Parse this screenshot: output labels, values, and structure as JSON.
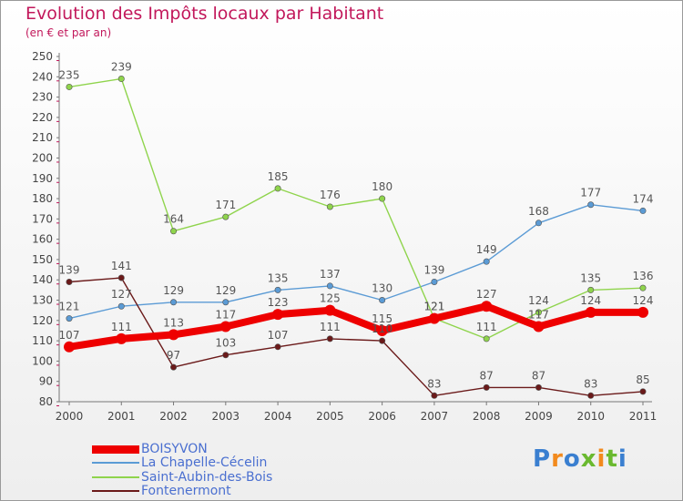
{
  "header": {
    "title": "Evolution des Impôts locaux par Habitant",
    "subtitle": "(en € et par an)"
  },
  "logo": {
    "text": "Proxiti",
    "colors": [
      "#3a7fd0",
      "#f28a1d",
      "#3a7fd0",
      "#6ab92f",
      "#f28a1d",
      "#6ab92f",
      "#3a7fd0"
    ]
  },
  "chart_data": {
    "type": "line",
    "title": "Evolution des Impôts locaux par Habitant",
    "subtitle": "(en € et par an)",
    "x": [
      "2000",
      "2001",
      "2002",
      "2003",
      "2004",
      "2005",
      "2006",
      "2007",
      "2008",
      "2009",
      "2010",
      "2011"
    ],
    "ylim": [
      80,
      250
    ],
    "yticks": [
      80,
      90,
      100,
      110,
      120,
      130,
      140,
      150,
      160,
      170,
      180,
      190,
      200,
      210,
      220,
      230,
      240,
      250
    ],
    "grid": false,
    "legend_position": "bottom-left",
    "series": [
      {
        "name": "BOISYVON",
        "color": "#ee0000",
        "values": [
          107,
          111,
          113,
          117,
          123,
          125,
          115,
          121,
          127,
          117,
          124,
          124
        ]
      },
      {
        "name": "La Chapelle-Cécelin",
        "color": "#5b9bd5",
        "values": [
          121,
          127,
          129,
          129,
          135,
          137,
          130,
          139,
          149,
          168,
          177,
          174
        ]
      },
      {
        "name": "Saint-Aubin-des-Bois",
        "color": "#8fd44c",
        "values": [
          235,
          239,
          164,
          171,
          185,
          176,
          180,
          121,
          111,
          124,
          135,
          136
        ]
      },
      {
        "name": "Fontenermont",
        "color": "#6b1a1a",
        "values": [
          139,
          141,
          97,
          103,
          107,
          111,
          110,
          83,
          87,
          87,
          83,
          85
        ]
      }
    ]
  }
}
